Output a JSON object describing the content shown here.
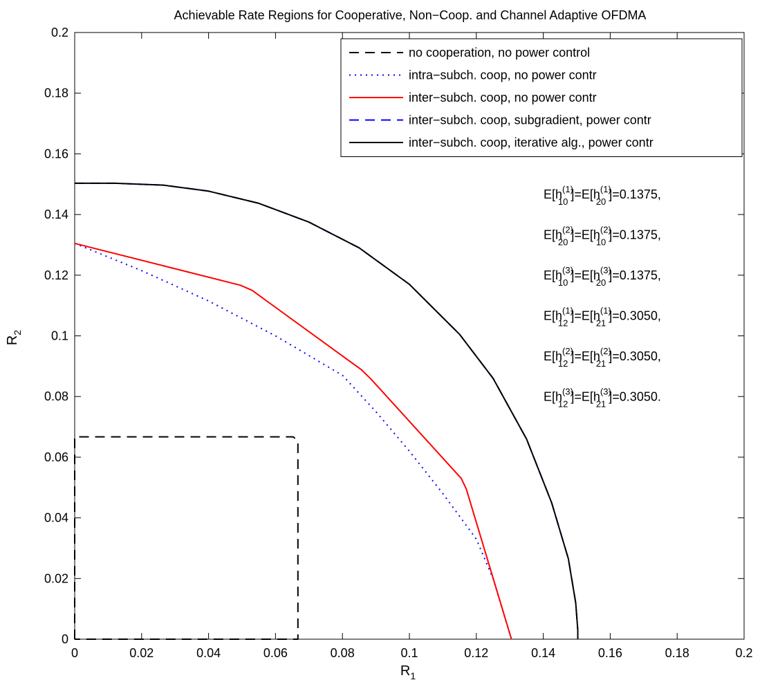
{
  "chart_data": {
    "type": "line",
    "title": "Achievable Rate Regions for Cooperative, Non−Coop. and Channel Adaptive OFDMA",
    "xlabel": "R",
    "xlabel_sub": "1",
    "ylabel": "R",
    "ylabel_sub": "2",
    "xlim": [
      0,
      0.2
    ],
    "ylim": [
      0,
      0.2
    ],
    "xticks": [
      "0",
      "0.02",
      "0.04",
      "0.06",
      "0.08",
      "0.1",
      "0.12",
      "0.14",
      "0.16",
      "0.18",
      "0.2"
    ],
    "yticks": [
      "0",
      "0.02",
      "0.04",
      "0.06",
      "0.08",
      "0.1",
      "0.12",
      "0.14",
      "0.16",
      "0.18",
      "0.2"
    ],
    "grid": false,
    "legend_position": "top-right",
    "series": [
      {
        "name": "no cooperation, no power control",
        "color": "#000000",
        "style": "dashed",
        "x": [
          0,
          0,
          0.0653,
          0.0667,
          0.0667,
          0.0,
          0.0
        ],
        "y": [
          0,
          0.0667,
          0.0667,
          0.0653,
          0,
          0,
          0
        ]
      },
      {
        "name": "intra−subch. coop, no power contr",
        "color": "#0000ff",
        "style": "dotted",
        "x": [
          0,
          0.02,
          0.04,
          0.06,
          0.08,
          0.09,
          0.1,
          0.11,
          0.12,
          0.125,
          0.1305
        ],
        "y": [
          0.1305,
          0.1215,
          0.1115,
          0.1,
          0.087,
          0.075,
          0.062,
          0.048,
          0.033,
          0.02,
          0
        ]
      },
      {
        "name": "inter−subch. coop, no power contr",
        "color": "#ff0000",
        "style": "solid",
        "x": [
          0,
          0.0495,
          0.053,
          0.0857,
          0.0885,
          0.1155,
          0.117,
          0.1305
        ],
        "y": [
          0.1305,
          0.1167,
          0.115,
          0.0888,
          0.0858,
          0.053,
          0.0495,
          0
        ]
      },
      {
        "name": "inter−subch. coop, subgradient, power contr",
        "color": "#0000ff",
        "style": "dashed",
        "x": [
          0,
          0.012,
          0.0265,
          0.04,
          0.055,
          0.07,
          0.085,
          0.1,
          0.115,
          0.125,
          0.135,
          0.1425,
          0.1475,
          0.1497,
          0.1503,
          0.1503
        ],
        "y": [
          0.1503,
          0.1503,
          0.1497,
          0.1477,
          0.1437,
          0.1375,
          0.129,
          0.117,
          0.1005,
          0.086,
          0.066,
          0.045,
          0.0265,
          0.012,
          0.003,
          0
        ]
      },
      {
        "name": "inter−subch. coop, iterative alg., power contr",
        "color": "#000000",
        "style": "solid",
        "x": [
          0,
          0.012,
          0.0265,
          0.04,
          0.055,
          0.07,
          0.085,
          0.1,
          0.115,
          0.125,
          0.135,
          0.1425,
          0.1475,
          0.1497,
          0.1503,
          0.1503
        ],
        "y": [
          0.1503,
          0.1503,
          0.1497,
          0.1477,
          0.1437,
          0.1375,
          0.129,
          0.117,
          0.1005,
          0.086,
          0.066,
          0.045,
          0.0265,
          0.012,
          0.003,
          0
        ]
      }
    ],
    "annotations": [
      {
        "pre": "E[h",
        "sup1": "(1)",
        "sub1": "10",
        "mid": "]=E[h",
        "sup2": "(1)",
        "sub2": "20",
        "post": "]=0.1375,"
      },
      {
        "pre": "E[h",
        "sup1": "(2)",
        "sub1": "20",
        "mid": "]=E[h",
        "sup2": "(2)",
        "sub2": "10",
        "post": "]=0.1375,"
      },
      {
        "pre": "E[h",
        "sup1": "(3)",
        "sub1": "10",
        "mid": "]=E[h",
        "sup2": "(3)",
        "sub2": "20",
        "post": "]=0.1375,"
      },
      {
        "pre": "E[h",
        "sup1": "(1)",
        "sub1": "12",
        "mid": "]=E[h",
        "sup2": "(1)",
        "sub2": "21",
        "post": "]=0.3050,"
      },
      {
        "pre": "E[h",
        "sup1": "(2)",
        "sub1": "12",
        "mid": "]=E[h",
        "sup2": "(2)",
        "sub2": "21",
        "post": "]=0.3050,"
      },
      {
        "pre": "E[h",
        "sup1": "(3)",
        "sub1": "12",
        "mid": "]=E[h",
        "sup2": "(3)",
        "sub2": "21",
        "post": "]=0.3050."
      }
    ]
  }
}
